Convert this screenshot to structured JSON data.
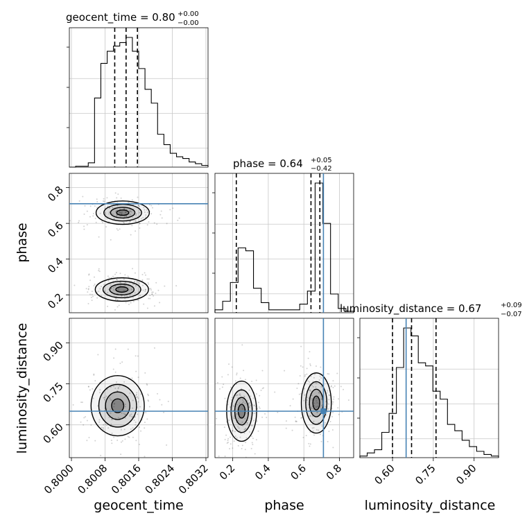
{
  "chart_data": {
    "type": "corner",
    "parameters": [
      {
        "name": "geocent_time",
        "axis_label": "geocent_time",
        "range": [
          0.79995,
          0.80325
        ],
        "ticks": [
          0.8,
          0.8008,
          0.8016,
          0.8024,
          0.8032
        ],
        "tick_labels": [
          "0.8000",
          "0.8008",
          "0.8016",
          "0.8024",
          "0.8032"
        ],
        "title": {
          "main": "geocent_time = 0.80",
          "upper": "+0.00",
          "lower": "−0.00"
        },
        "quantiles": [
          0.80103,
          0.8013,
          0.80157
        ],
        "injection": null,
        "hist_bins": [
          0.79995,
          0.80032
        ],
        "hist_counts": [
          0,
          0.5,
          0.5,
          2.5,
          40,
          60,
          67,
          70,
          72,
          75,
          67,
          57,
          45,
          37,
          19,
          13,
          8,
          6,
          5,
          3,
          2,
          1
        ]
      },
      {
        "name": "phase",
        "axis_label": "phase",
        "range": [
          0.1,
          0.88
        ],
        "ticks": [
          0.2,
          0.4,
          0.6,
          0.8
        ],
        "tick_labels": [
          "0.2",
          "0.4",
          "0.6",
          "0.8"
        ],
        "title": {
          "main": "phase = 0.64",
          "upper": "+0.05",
          "lower": "−0.42"
        },
        "quantiles": [
          0.22,
          0.64,
          0.69
        ],
        "injection": 0.71,
        "hist_bins": [
          0.1,
          0.88
        ],
        "hist_counts": [
          2,
          8,
          21,
          45,
          43,
          17,
          7,
          2,
          2,
          2,
          2,
          6,
          15,
          90,
          62,
          13,
          3,
          1
        ]
      },
      {
        "name": "luminosity_distance",
        "axis_label": "luminosity_distance",
        "range": [
          0.48,
          0.99
        ],
        "ticks": [
          0.6,
          0.75,
          0.9
        ],
        "tick_labels": [
          "0.60",
          "0.75",
          "0.90"
        ],
        "title": {
          "main": "luminosity_distance = 0.67",
          "upper": "+0.09",
          "lower": "−0.07"
        },
        "quantiles": [
          0.6,
          0.67,
          0.76
        ],
        "injection": 0.65,
        "hist_bins": [
          0.48,
          0.99
        ],
        "hist_counts": [
          1,
          3,
          5,
          16,
          28,
          57,
          82,
          77,
          60,
          58,
          42,
          37,
          21,
          17,
          11,
          7,
          4,
          2,
          1
        ]
      }
    ],
    "axis_labels": [
      "geocent_time",
      "phase",
      "luminosity_distance"
    ],
    "injection_color": "#4682b4",
    "grid": true,
    "pairs": [
      {
        "x": "geocent_time",
        "y": "phase",
        "mode_centers": [
          [
            0.80122,
            0.66
          ],
          [
            0.8012,
            0.23
          ]
        ]
      },
      {
        "x": "geocent_time",
        "y": "luminosity_distance",
        "mode_centers": [
          [
            0.8011,
            0.67
          ]
        ]
      },
      {
        "x": "phase",
        "y": "luminosity_distance",
        "mode_centers": [
          [
            0.25,
            0.65
          ],
          [
            0.67,
            0.68
          ]
        ]
      }
    ]
  }
}
